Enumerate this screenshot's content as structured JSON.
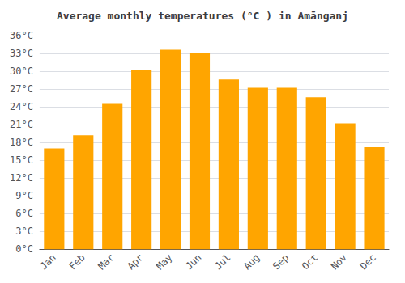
{
  "chart_data": {
    "type": "bar",
    "title": "Average monthly temperatures (°C ) in Amānganj",
    "categories": [
      "Jan",
      "Feb",
      "Mar",
      "Apr",
      "May",
      "Jun",
      "Jul",
      "Aug",
      "Sep",
      "Oct",
      "Nov",
      "Dec"
    ],
    "values": [
      17.0,
      19.2,
      24.5,
      30.2,
      33.6,
      33.1,
      28.6,
      27.2,
      27.2,
      25.6,
      21.2,
      17.2
    ],
    "color": "#FFA500",
    "ylim": [
      0,
      36
    ],
    "yticks": [
      {
        "value": 0,
        "label": "0°C"
      },
      {
        "value": 3,
        "label": "3°C"
      },
      {
        "value": 6,
        "label": "6°C"
      },
      {
        "value": 9,
        "label": "9°C"
      },
      {
        "value": 12,
        "label": "12°C"
      },
      {
        "value": 15,
        "label": "15°C"
      },
      {
        "value": 18,
        "label": "18°C"
      },
      {
        "value": 21,
        "label": "21°C"
      },
      {
        "value": 24,
        "label": "24°C"
      },
      {
        "value": 27,
        "label": "27°C"
      },
      {
        "value": 30,
        "label": "30°C"
      },
      {
        "value": 33,
        "label": "33°C"
      },
      {
        "value": 36,
        "label": "36°C"
      }
    ],
    "grid": true
  }
}
